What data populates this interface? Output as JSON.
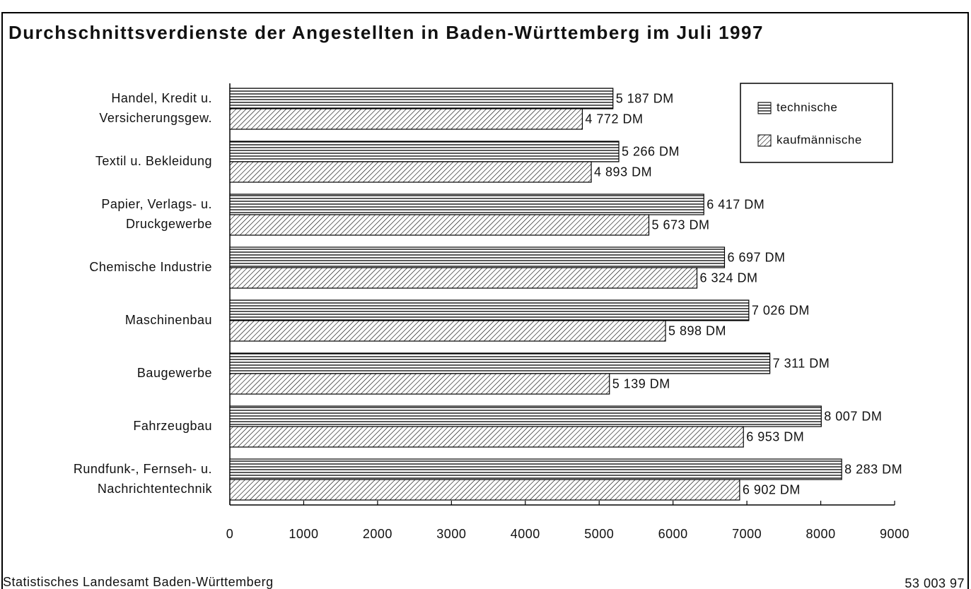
{
  "chart_data": {
    "type": "hbar",
    "title": "Durchschnittsverdienste der Angestellten in Baden-Württemberg im Juli 1997",
    "categories": [
      [
        "Handel, Kredit u.",
        "Versicherungsgew."
      ],
      [
        "Textil u. Bekleidung"
      ],
      [
        "Papier, Verlags- u.",
        "Druckgewerbe"
      ],
      [
        "Chemische Industrie"
      ],
      [
        "Maschinenbau"
      ],
      [
        "Baugewerbe"
      ],
      [
        "Fahrzeugbau"
      ],
      [
        "Rundfunk-, Fernseh- u.",
        "Nachrichtentechnik"
      ]
    ],
    "series": [
      {
        "name": "technische",
        "color": "#000000",
        "pattern": "horizontal",
        "values": [
          5187,
          5266,
          6417,
          6697,
          7026,
          7311,
          8007,
          8283
        ],
        "value_labels": [
          "5 187 DM",
          "5 266 DM",
          "6 417 DM",
          "6 697 DM",
          "7 026 DM",
          "7 311 DM",
          "8 007 DM",
          "8 283 DM"
        ]
      },
      {
        "name": "kaufmännische",
        "color": "#000000",
        "pattern": "diagonal",
        "values": [
          4772,
          4893,
          5673,
          6324,
          5898,
          5139,
          6953,
          6902
        ],
        "value_labels": [
          "4 772 DM",
          "4 893 DM",
          "5 673 DM",
          "6 324 DM",
          "5 898 DM",
          "5 139 DM",
          "6 953 DM",
          "6 902 DM"
        ]
      }
    ],
    "xlim": [
      0,
      9000
    ],
    "xticks": [
      0,
      1000,
      2000,
      3000,
      4000,
      5000,
      6000,
      7000,
      8000,
      9000
    ],
    "legend": "top-right",
    "source": "Statistisches Landesamt Baden-Württemberg",
    "code": "53 003 97"
  }
}
